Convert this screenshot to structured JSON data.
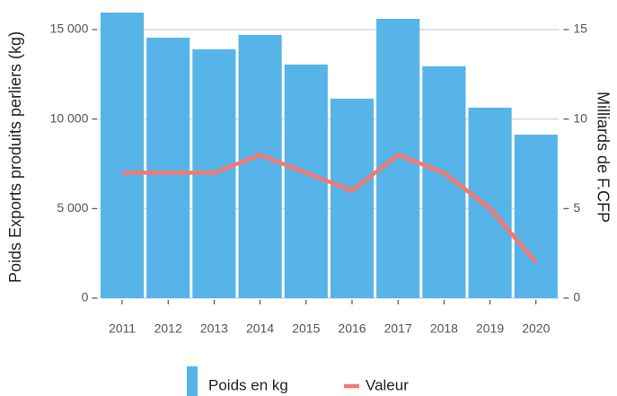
{
  "chart_data": {
    "type": "bar-line",
    "categories": [
      "2011",
      "2012",
      "2013",
      "2014",
      "2015",
      "2016",
      "2017",
      "2018",
      "2019",
      "2020"
    ],
    "series": [
      {
        "name": "Poids en kg",
        "color": "#56b4e9",
        "type": "bar",
        "values": [
          15950,
          14550,
          13900,
          14700,
          13050,
          11140,
          15600,
          12950,
          10640,
          9130
        ]
      },
      {
        "name": "Valeur",
        "color": "#f8766d",
        "type": "line",
        "axis": "y2",
        "values": [
          7,
          7,
          7,
          8,
          7,
          6,
          8,
          7,
          5,
          2
        ]
      }
    ],
    "ylabel": "Poids Exports produits perliers (kg)",
    "y2label": "Milliards de F.CFP",
    "ylim": [
      0,
      16300
    ],
    "yticks": [
      0,
      {
        "value": 5000,
        "label": "5 000"
      },
      {
        "value": 10000,
        "label": "10 000"
      },
      {
        "value": 15000,
        "label": "15 000"
      }
    ],
    "y2lim": [
      0,
      16.3
    ],
    "y2ticks": [
      0,
      5,
      10,
      15
    ],
    "grid": true,
    "legend": "bottom"
  }
}
